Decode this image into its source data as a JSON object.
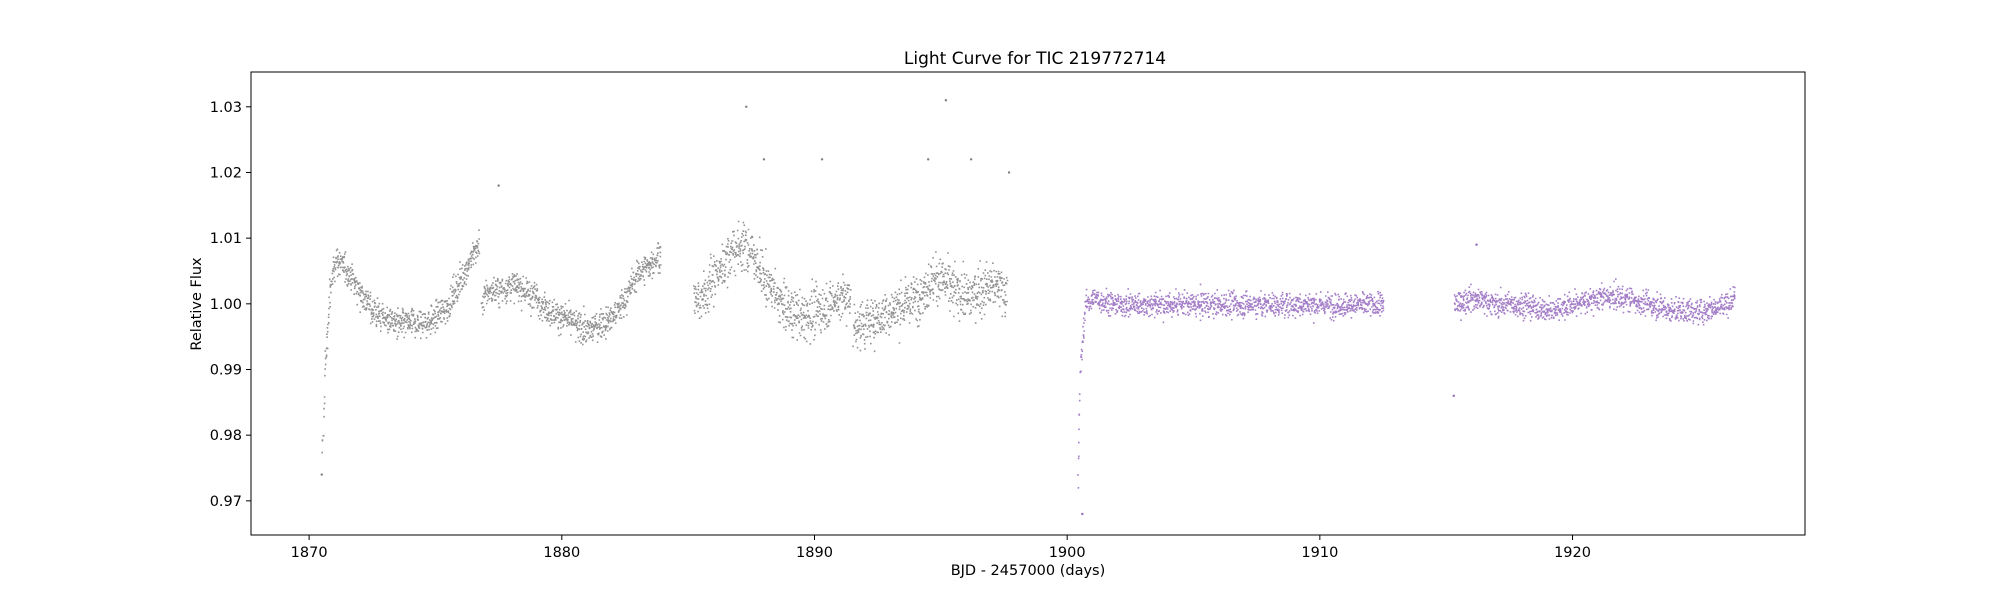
{
  "chart_data": {
    "type": "scatter",
    "title": "Light Curve for TIC 219772714",
    "xlabel": "BJD - 2457000 (days)",
    "ylabel": "Relative Flux",
    "xlim": [
      1867.7,
      1929.2
    ],
    "ylim": [
      0.9648,
      1.0353
    ],
    "xticks": [
      1870,
      1880,
      1890,
      1900,
      1910,
      1920
    ],
    "yticks": [
      0.97,
      0.98,
      0.99,
      1.0,
      1.01,
      1.02,
      1.03
    ],
    "ytick_labels": [
      "0.97",
      "0.98",
      "0.99",
      "1.00",
      "1.01",
      "1.02",
      "1.03"
    ],
    "grid": false,
    "legend": "none",
    "colors": {
      "series1": "#7f7f7f",
      "series2": "#9467bd",
      "axes": "#000000"
    },
    "series": [
      {
        "color": "#7f7f7f",
        "segments": [
          {
            "x": [
              1870.5,
              1870.6,
              1870.8,
              1871.0,
              1871.5,
              1872.0,
              1872.5,
              1873.0,
              1873.5,
              1874.0,
              1874.5,
              1875.0,
              1875.5,
              1876.0,
              1876.5,
              1876.7
            ],
            "y": [
              0.976,
              0.99,
              1.002,
              1.007,
              1.005,
              1.002,
              0.999,
              0.998,
              0.997,
              0.997,
              0.997,
              0.998,
              1.0,
              1.004,
              1.008,
              1.009
            ],
            "scatter": 0.0022
          },
          {
            "x": [
              1876.8,
              1877.0,
              1877.5,
              1878.0,
              1878.5,
              1879.0,
              1879.5,
              1880.0,
              1880.5,
              1881.0,
              1881.5,
              1882.0,
              1882.5,
              1883.0,
              1883.5,
              1883.9
            ],
            "y": [
              1.0,
              1.002,
              1.002,
              1.003,
              1.002,
              1.001,
              0.999,
              0.998,
              0.997,
              0.996,
              0.997,
              0.998,
              1.001,
              1.005,
              1.006,
              1.008
            ],
            "scatter": 0.0022
          },
          {
            "x": [
              1885.2,
              1885.5,
              1886.0,
              1886.5,
              1887.0,
              1887.5,
              1888.0,
              1888.5,
              1889.0,
              1889.5,
              1890.0,
              1890.5,
              1891.0,
              1891.4
            ],
            "y": [
              1.0,
              1.001,
              1.004,
              1.007,
              1.009,
              1.008,
              1.004,
              1.001,
              0.999,
              0.998,
              0.999,
              1.0,
              1.001,
              1.001
            ],
            "scatter": 0.0035
          },
          {
            "x": [
              1891.5,
              1892.0,
              1892.5,
              1893.0,
              1893.5,
              1894.0,
              1894.5,
              1895.0,
              1895.5,
              1896.0,
              1896.5,
              1897.0,
              1897.6
            ],
            "y": [
              0.997,
              0.997,
              0.998,
              0.999,
              1.0,
              1.001,
              1.003,
              1.004,
              1.002,
              1.001,
              1.002,
              1.003,
              1.002
            ],
            "scatter": 0.0035
          }
        ]
      },
      {
        "color": "#9467bd",
        "segments": [
          {
            "x": [
              1900.4,
              1900.5,
              1900.7,
              1901.0,
              1902.0,
              1903.0,
              1904.0,
              1905.0,
              1906.0,
              1907.0,
              1908.0,
              1909.0,
              1910.0,
              1911.0,
              1912.0,
              1912.5
            ],
            "y": [
              0.972,
              0.99,
              1.0,
              1.001,
              1.0,
              1.0,
              1.0,
              1.0,
              1.0,
              1.0,
              1.0,
              1.0,
              1.0,
              1.0,
              1.0,
              1.0
            ],
            "scatter": 0.0018
          },
          {
            "x": [
              1915.3,
              1916.0,
              1917.0,
              1918.0,
              1919.0,
              1920.0,
              1921.0,
              1922.0,
              1923.0,
              1924.0,
              1925.0,
              1926.0,
              1926.4
            ],
            "y": [
              1.0,
              1.001,
              1.0,
              1.0,
              0.999,
              1.0,
              1.001,
              1.001,
              1.0,
              0.999,
              0.999,
              1.0,
              1.001
            ],
            "scatter": 0.0018
          }
        ]
      }
    ],
    "outliers": [
      {
        "x": 1870.5,
        "y": 0.974,
        "color": "#7f7f7f"
      },
      {
        "x": 1887.3,
        "y": 1.03,
        "color": "#7f7f7f"
      },
      {
        "x": 1888.0,
        "y": 1.022,
        "color": "#7f7f7f"
      },
      {
        "x": 1890.3,
        "y": 1.022,
        "color": "#7f7f7f"
      },
      {
        "x": 1895.2,
        "y": 1.031,
        "color": "#7f7f7f"
      },
      {
        "x": 1894.5,
        "y": 1.022,
        "color": "#7f7f7f"
      },
      {
        "x": 1896.2,
        "y": 1.022,
        "color": "#7f7f7f"
      },
      {
        "x": 1897.7,
        "y": 1.02,
        "color": "#7f7f7f"
      },
      {
        "x": 1877.5,
        "y": 1.018,
        "color": "#7f7f7f"
      },
      {
        "x": 1900.6,
        "y": 0.968,
        "color": "#9467bd"
      },
      {
        "x": 1915.3,
        "y": 0.986,
        "color": "#9467bd"
      },
      {
        "x": 1916.2,
        "y": 1.009,
        "color": "#9467bd"
      }
    ]
  }
}
